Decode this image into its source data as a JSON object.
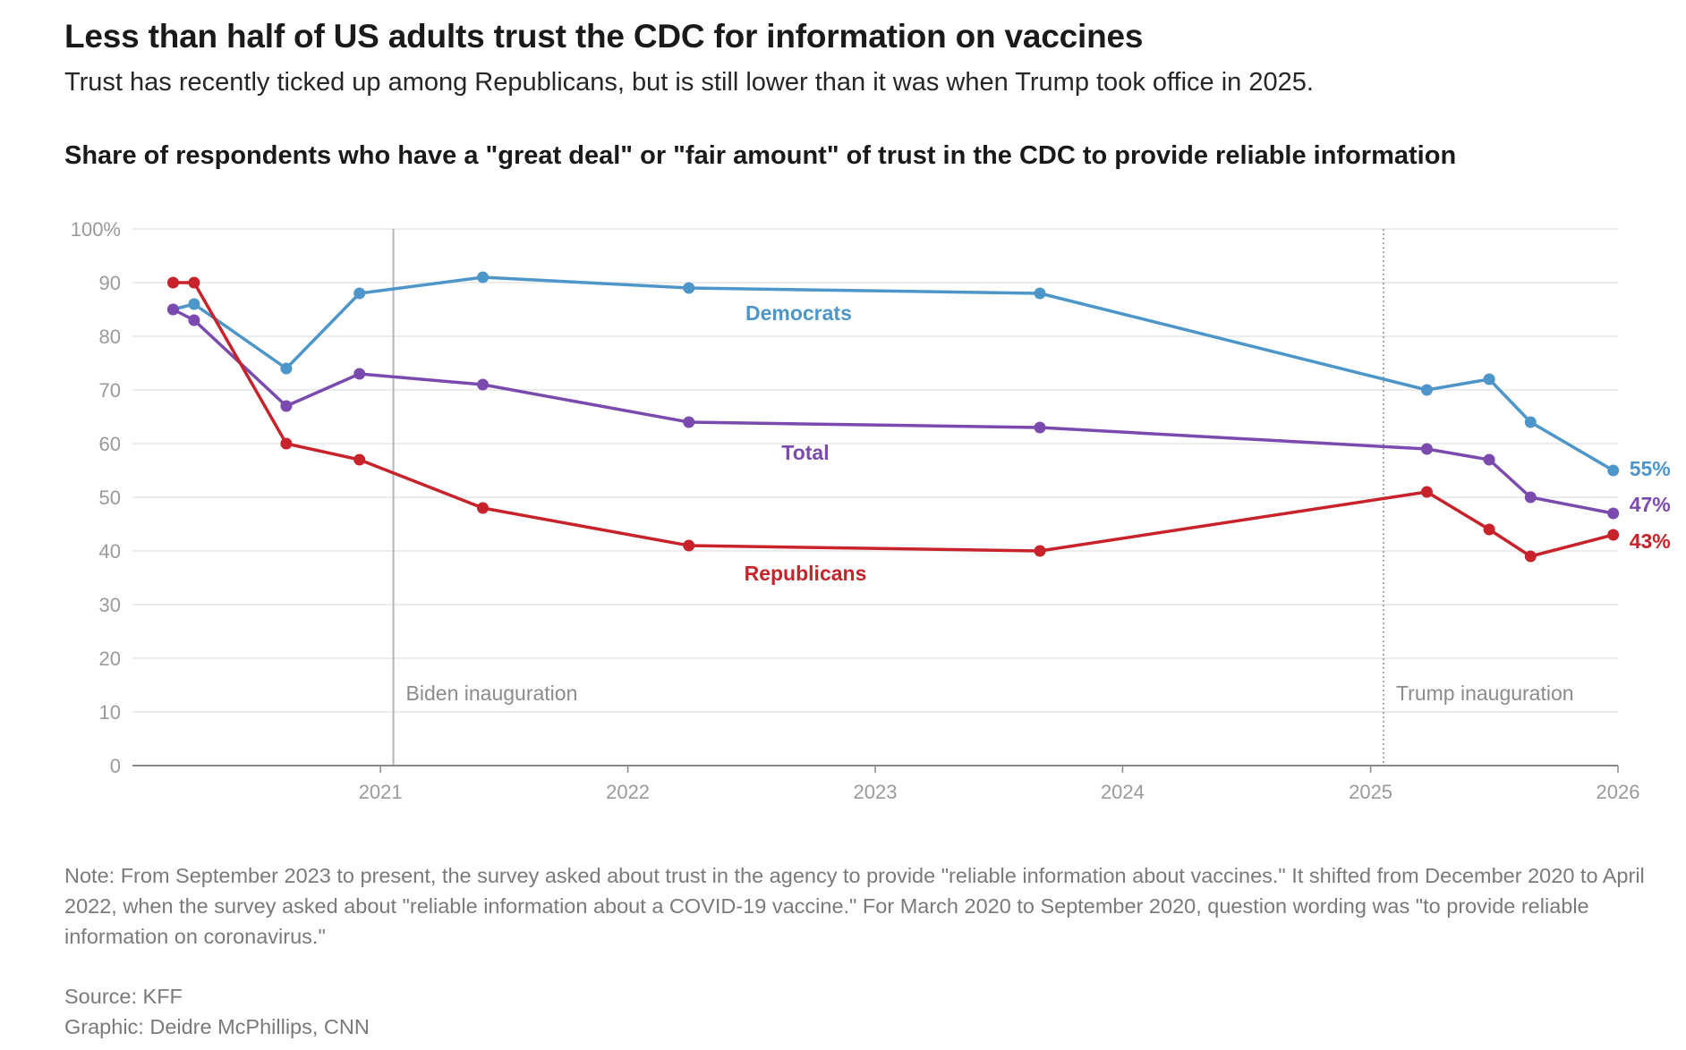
{
  "title": "Less than half of US adults trust the CDC for information on vaccines",
  "subtitle": "Trust has recently ticked up among Republicans, but is still lower than it was when Trump took office in 2025.",
  "note": "Note: From September 2023 to present, the survey asked about trust in the agency to provide \"reliable information about vaccines.\" It shifted from December 2020 to April 2022, when the survey asked about \"reliable information about a COVID-19 vaccine.\" For March 2020 to September 2020, question wording was \"to provide reliable information on coronavirus.\"",
  "source": "Source: KFF",
  "credit": "Graphic: Deidre McPhillips, CNN",
  "chart_data": {
    "type": "line",
    "title": "Share of respondents who have a \"great deal\" or \"fair amount\" of trust in the CDC to provide reliable information",
    "xlabel": "",
    "ylabel": "",
    "xlim": [
      "2020-01-01",
      "2026-01-01"
    ],
    "ylim": [
      0,
      100
    ],
    "grid": true,
    "legend": "inline labels",
    "y_ticks": [
      "0",
      "10",
      "20",
      "30",
      "40",
      "50",
      "60",
      "70",
      "80",
      "90",
      "100%"
    ],
    "y_tick_values": [
      0,
      10,
      20,
      30,
      40,
      50,
      60,
      70,
      80,
      90,
      100
    ],
    "x_ticks": [
      "2021",
      "2022",
      "2023",
      "2024",
      "2025",
      "2026"
    ],
    "x_tick_values": [
      "2021-01-01",
      "2022-01-01",
      "2023-01-01",
      "2024-01-01",
      "2025-01-01",
      "2026-01-01"
    ],
    "annotations": [
      {
        "x": "2021-01-20",
        "text": "Biden inauguration",
        "style": "solid"
      },
      {
        "x": "2025-01-20",
        "text": "Trump inauguration",
        "style": "dotted"
      }
    ],
    "series": [
      {
        "name": "Democrats",
        "color": "#4d96c9",
        "end_label": "55%",
        "x": [
          "2020-03-01",
          "2020-04-01",
          "2020-08-15",
          "2020-12-01",
          "2021-06-01",
          "2022-04-01",
          "2023-09-01",
          "2025-03-25",
          "2025-06-25",
          "2025-08-25",
          "2025-12-25"
        ],
        "values": [
          85,
          86,
          74,
          88,
          91,
          89,
          88,
          70,
          72,
          64,
          55
        ]
      },
      {
        "name": "Total",
        "color": "#7b4aaf",
        "end_label": "47%",
        "x": [
          "2020-03-01",
          "2020-04-01",
          "2020-08-15",
          "2020-12-01",
          "2021-06-01",
          "2022-04-01",
          "2023-09-01",
          "2025-03-25",
          "2025-06-25",
          "2025-08-25",
          "2025-12-25"
        ],
        "values": [
          85,
          83,
          67,
          73,
          71,
          64,
          63,
          59,
          57,
          50,
          47
        ]
      },
      {
        "name": "Republicans",
        "color": "#c8232b",
        "end_label": "43%",
        "x": [
          "2020-03-01",
          "2020-04-01",
          "2020-08-15",
          "2020-12-01",
          "2021-06-01",
          "2022-04-01",
          "2023-09-01",
          "2025-03-25",
          "2025-06-25",
          "2025-08-25",
          "2025-12-25"
        ],
        "values": [
          90,
          90,
          60,
          57,
          48,
          41,
          40,
          51,
          44,
          39,
          43
        ]
      }
    ]
  }
}
